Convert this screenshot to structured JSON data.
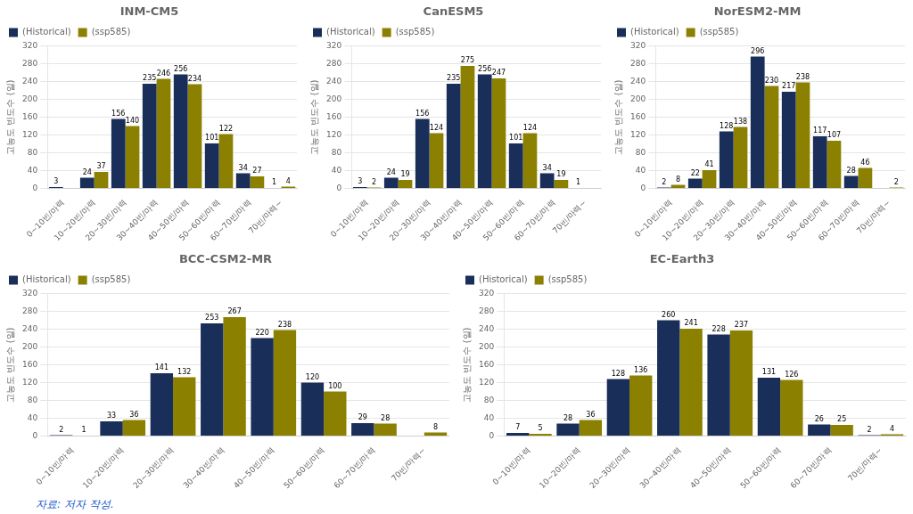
{
  "chart_data": [
    {
      "type": "bar",
      "title": "INM-CM5",
      "categories": [
        "0~10빈/마력",
        "10~20빈/마력",
        "20~30빈/마력",
        "30~40빈/마력",
        "40~50빈/마력",
        "50~60빈/마력",
        "60~70빈/마력",
        "70빈/마력~"
      ],
      "series": [
        {
          "name": "(Historical)",
          "color": "#1a2e5a",
          "values": [
            3,
            24,
            156,
            235,
            256,
            101,
            34,
            1
          ],
          "value_labels": [
            "3",
            "24",
            "156",
            "235",
            "256",
            "101",
            "34",
            "1"
          ]
        },
        {
          "name": "(ssp585)",
          "color": "#8b8000",
          "values": [
            0,
            37,
            140,
            246,
            234,
            122,
            27,
            4
          ],
          "value_labels": [
            null,
            "37",
            "140",
            "246",
            "234",
            "122",
            "27",
            "4"
          ]
        }
      ],
      "ylabel": "고농도 빈도수 (일)",
      "ylim": [
        0,
        320
      ],
      "yticks": [
        0,
        40,
        80,
        120,
        160,
        200,
        240,
        280,
        320
      ],
      "grid": true,
      "legend": "upper left",
      "data_labels": true
    },
    {
      "type": "bar",
      "title": "CanESM5",
      "categories": [
        "0~10빈/마력",
        "10~20빈/마력",
        "20~30빈/마력",
        "30~40빈/마력",
        "40~50빈/마력",
        "50~60빈/마력",
        "60~70빈/마력",
        "70빈/마력~"
      ],
      "series": [
        {
          "name": "(Historical)",
          "color": "#1a2e5a",
          "values": [
            3,
            24,
            156,
            235,
            256,
            101,
            34,
            1
          ],
          "value_labels": [
            "3",
            "24",
            "156",
            "235",
            "256",
            "101",
            "34",
            "1"
          ]
        },
        {
          "name": "(ssp585)",
          "color": "#8b8000",
          "values": [
            2,
            19,
            124,
            275,
            247,
            124,
            19,
            0
          ],
          "value_labels": [
            "2",
            "19",
            "124",
            "275",
            "247",
            "124",
            "19",
            null
          ]
        }
      ],
      "ylabel": "고농도 빈도수 (일)",
      "ylim": [
        0,
        320
      ],
      "yticks": [
        0,
        40,
        80,
        120,
        160,
        200,
        240,
        280,
        320
      ],
      "grid": true,
      "legend": "upper left",
      "data_labels": true
    },
    {
      "type": "bar",
      "title": "NorESM2-MM",
      "categories": [
        "0~10빈/마력",
        "10~20빈/마력",
        "20~30빈/마력",
        "30~40빈/마력",
        "40~50빈/마력",
        "50~60빈/마력",
        "60~70빈/마력",
        "70빈/마력~"
      ],
      "series": [
        {
          "name": "(Historical)",
          "color": "#1a2e5a",
          "values": [
            2,
            22,
            128,
            296,
            217,
            117,
            28,
            0
          ],
          "value_labels": [
            "2",
            "22",
            "128",
            "296",
            "217",
            "117",
            "28",
            null
          ]
        },
        {
          "name": "(ssp585)",
          "color": "#8b8000",
          "values": [
            8,
            41,
            138,
            230,
            238,
            107,
            46,
            2
          ],
          "value_labels": [
            "8",
            "41",
            "138",
            "230",
            "238",
            "107",
            "46",
            "2"
          ]
        }
      ],
      "ylabel": "고농도 빈도수 (일)",
      "ylim": [
        0,
        320
      ],
      "yticks": [
        0,
        40,
        80,
        120,
        160,
        200,
        240,
        280,
        320
      ],
      "grid": true,
      "legend": "upper left",
      "data_labels": true
    },
    {
      "type": "bar",
      "title": "BCC-CSM2-MR",
      "categories": [
        "0~10빈/마력",
        "10~20빈/마력",
        "20~30빈/마력",
        "30~40빈/마력",
        "40~50빈/마력",
        "50~60빈/마력",
        "60~70빈/마력",
        "70빈/마력~"
      ],
      "series": [
        {
          "name": "(Historical)",
          "color": "#1a2e5a",
          "values": [
            2,
            33,
            141,
            253,
            220,
            120,
            29,
            0
          ],
          "value_labels": [
            "2",
            "33",
            "141",
            "253",
            "220",
            "120",
            "29",
            null
          ]
        },
        {
          "name": "(ssp585)",
          "color": "#8b8000",
          "values": [
            1,
            36,
            132,
            267,
            238,
            100,
            28,
            8
          ],
          "value_labels": [
            "1",
            "36",
            "132",
            "267",
            "238",
            "100",
            "28",
            "8"
          ]
        }
      ],
      "ylabel": "고농도 빈도수 (일)",
      "ylim": [
        0,
        320
      ],
      "yticks": [
        0,
        40,
        80,
        120,
        160,
        200,
        240,
        280,
        320
      ],
      "grid": true,
      "legend": "upper left",
      "data_labels": true
    },
    {
      "type": "bar",
      "title": "EC-Earth3",
      "categories": [
        "0~10빈/마력",
        "10~20빈/마력",
        "20~30빈/마력",
        "30~40빈/마력",
        "40~50빈/마력",
        "50~60빈/마력",
        "60~70빈/마력",
        "70빈/마력~"
      ],
      "series": [
        {
          "name": "(Historical)",
          "color": "#1a2e5a",
          "values": [
            7,
            28,
            128,
            260,
            228,
            131,
            26,
            2
          ],
          "value_labels": [
            "7",
            "28",
            "128",
            "260",
            "228",
            "131",
            "26",
            "2"
          ]
        },
        {
          "name": "(ssp585)",
          "color": "#8b8000",
          "values": [
            5,
            36,
            136,
            241,
            237,
            126,
            25,
            4
          ],
          "value_labels": [
            "5",
            "36",
            "136",
            "241",
            "237",
            "126",
            "25",
            "4"
          ]
        }
      ],
      "ylabel": "고농도 빈도수 (일)",
      "ylim": [
        0,
        320
      ],
      "yticks": [
        0,
        40,
        80,
        120,
        160,
        200,
        240,
        280,
        320
      ],
      "grid": true,
      "legend": "upper left",
      "data_labels": true
    }
  ],
  "footnote": "자료:  저자 작성."
}
